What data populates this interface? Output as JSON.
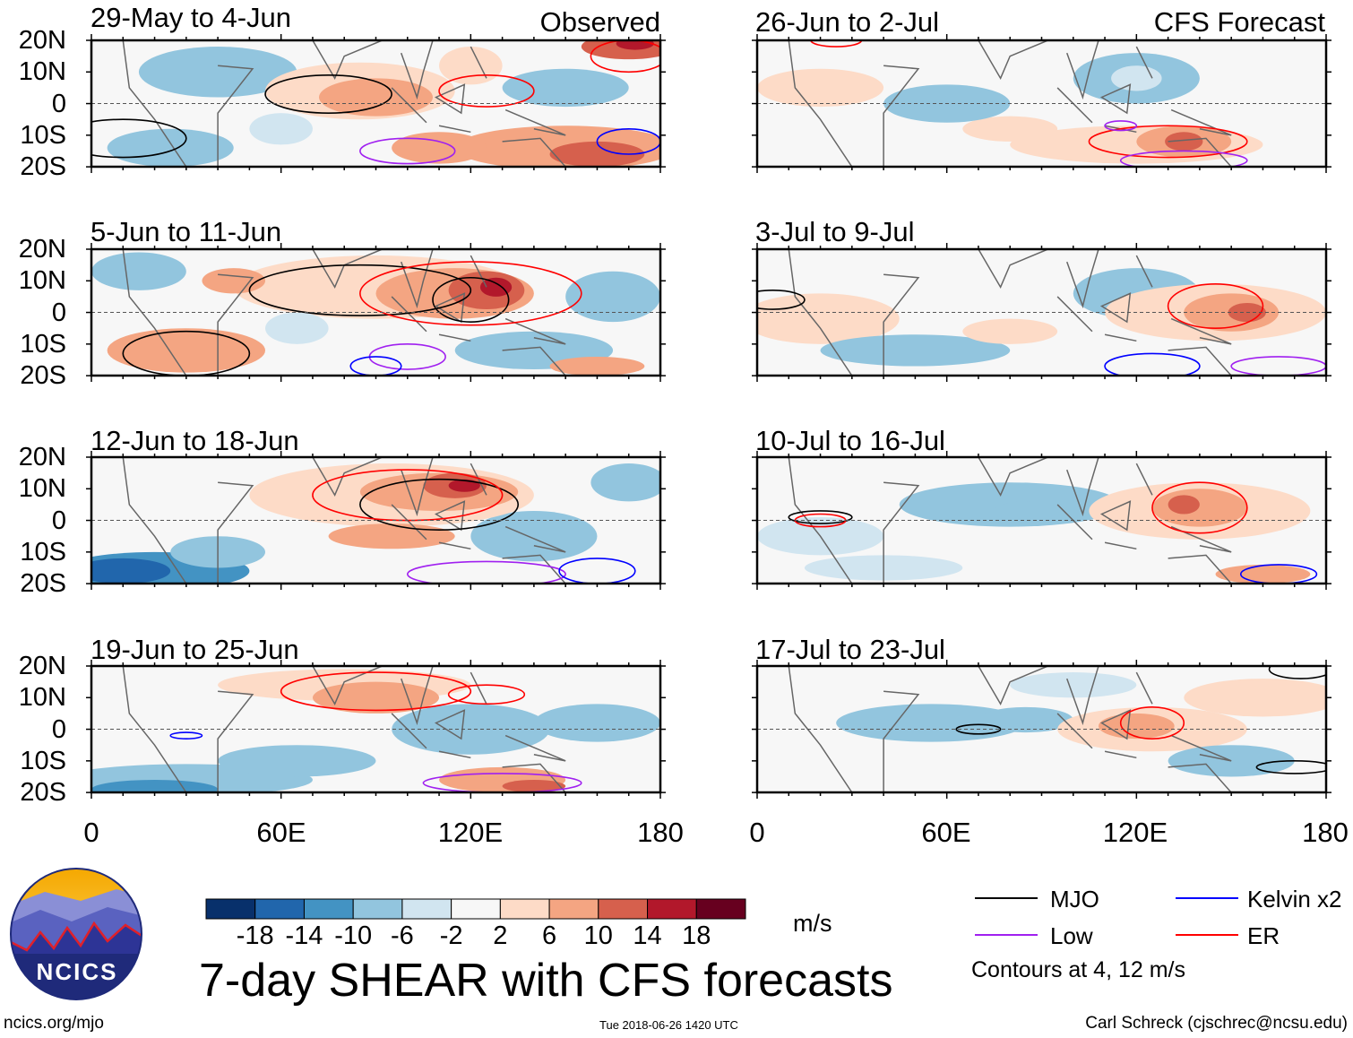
{
  "left_column": {
    "label": "Observed",
    "panels": [
      {
        "title": "29-May to 4-Jun"
      },
      {
        "title": "5-Jun to 11-Jun"
      },
      {
        "title": "12-Jun to 18-Jun"
      },
      {
        "title": "19-Jun to 25-Jun"
      }
    ]
  },
  "right_column": {
    "label": "CFS Forecast",
    "panels": [
      {
        "title": "26-Jun to 2-Jul"
      },
      {
        "title": "3-Jul to 9-Jul"
      },
      {
        "title": "10-Jul to 16-Jul"
      },
      {
        "title": "17-Jul to 23-Jul"
      }
    ]
  },
  "lat_labels": [
    "20N",
    "10N",
    "0",
    "10S",
    "20S"
  ],
  "lon_labels": [
    "0",
    "60E",
    "120E",
    "180"
  ],
  "colorbar": {
    "colors": [
      "#08306b",
      "#2166ac",
      "#4393c3",
      "#92c5de",
      "#d1e5f0",
      "#f7f7f7",
      "#fddbc7",
      "#f4a582",
      "#d6604d",
      "#b2182b",
      "#67001f"
    ],
    "labels": [
      "-18",
      "-14",
      "-10",
      "-6",
      "-2",
      "2",
      "6",
      "10",
      "14",
      "18"
    ],
    "units": "m/s"
  },
  "title": "7-day SHEAR with CFS forecasts",
  "legend": {
    "items": [
      {
        "label": "MJO",
        "color": "#000000"
      },
      {
        "label": "Kelvin x2",
        "color": "#0000ff"
      },
      {
        "label": "Low",
        "color": "#a020f0"
      },
      {
        "label": "ER",
        "color": "#ff0000"
      }
    ],
    "note": "Contours at 4, 12 m/s"
  },
  "logo": {
    "text": "NCICS"
  },
  "footer": {
    "url": "ncics.org/mjo",
    "timestamp": "Tue 2018-06-26 1420 UTC",
    "credit": "Carl Schreck (cjschrec@ncsu.edu)"
  }
}
